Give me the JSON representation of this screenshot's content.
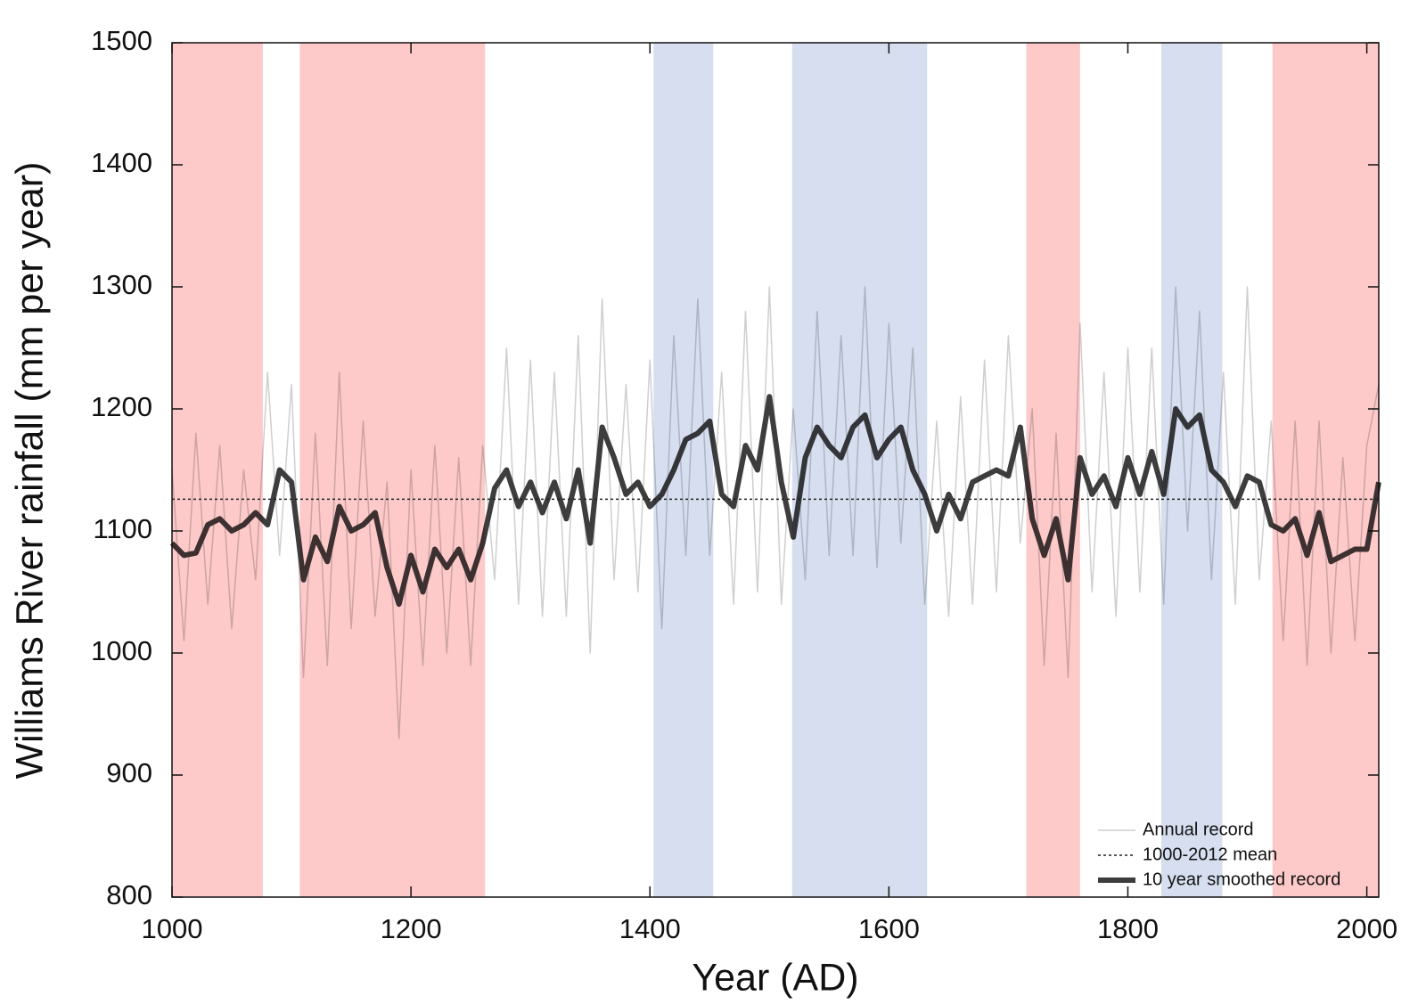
{
  "chart_data": {
    "type": "line",
    "xlabel": "Year (AD)",
    "ylabel": "Williams River rainfall (mm per year)",
    "xlim": [
      1000,
      2010
    ],
    "ylim": [
      800,
      1500
    ],
    "xticks": [
      1000,
      1200,
      1400,
      1600,
      1800,
      2000
    ],
    "yticks": [
      800,
      900,
      1000,
      1100,
      1200,
      1300,
      1400,
      1500
    ],
    "legend": "lower right",
    "shaded_regions": [
      {
        "start": 1000,
        "end": 1076,
        "color": "#fdc9c9"
      },
      {
        "start": 1107,
        "end": 1262,
        "color": "#fdc9c9"
      },
      {
        "start": 1403,
        "end": 1453,
        "color": "#d6deef"
      },
      {
        "start": 1519,
        "end": 1632,
        "color": "#d6deef"
      },
      {
        "start": 1715,
        "end": 1760,
        "color": "#fdc9c9"
      },
      {
        "start": 1828,
        "end": 1879,
        "color": "#d6deef"
      },
      {
        "start": 1921,
        "end": 2010,
        "color": "#fdc9c9"
      }
    ],
    "mean_line": {
      "name": "1000-2012 mean",
      "value": 1126,
      "color": "#222222"
    },
    "x": [
      1000,
      1010,
      1020,
      1030,
      1040,
      1050,
      1060,
      1070,
      1080,
      1090,
      1100,
      1110,
      1120,
      1130,
      1140,
      1150,
      1160,
      1170,
      1180,
      1190,
      1200,
      1210,
      1220,
      1230,
      1240,
      1250,
      1260,
      1270,
      1280,
      1290,
      1300,
      1310,
      1320,
      1330,
      1340,
      1350,
      1360,
      1370,
      1380,
      1390,
      1400,
      1410,
      1420,
      1430,
      1440,
      1450,
      1460,
      1470,
      1480,
      1490,
      1500,
      1510,
      1520,
      1530,
      1540,
      1550,
      1560,
      1570,
      1580,
      1590,
      1600,
      1610,
      1620,
      1630,
      1640,
      1650,
      1660,
      1670,
      1680,
      1690,
      1700,
      1710,
      1720,
      1730,
      1740,
      1750,
      1760,
      1770,
      1780,
      1790,
      1800,
      1810,
      1820,
      1830,
      1840,
      1850,
      1860,
      1870,
      1880,
      1890,
      1900,
      1910,
      1920,
      1930,
      1940,
      1950,
      1960,
      1970,
      1980,
      1990,
      2000,
      2010
    ],
    "series": [
      {
        "name": "Annual record",
        "color": "#cfcfcf",
        "width": 1.5,
        "values": [
          1150,
          1010,
          1180,
          1040,
          1170,
          1020,
          1150,
          1060,
          1230,
          1080,
          1220,
          980,
          1180,
          990,
          1230,
          1020,
          1190,
          1030,
          1140,
          930,
          1150,
          990,
          1170,
          1000,
          1160,
          990,
          1170,
          1060,
          1250,
          1040,
          1240,
          1030,
          1230,
          1030,
          1260,
          1000,
          1290,
          1060,
          1220,
          1050,
          1240,
          1020,
          1260,
          1080,
          1290,
          1080,
          1230,
          1040,
          1280,
          1050,
          1300,
          1040,
          1200,
          1060,
          1280,
          1080,
          1260,
          1080,
          1300,
          1070,
          1270,
          1090,
          1250,
          1040,
          1190,
          1030,
          1210,
          1040,
          1240,
          1050,
          1260,
          1090,
          1200,
          990,
          1180,
          980,
          1270,
          1050,
          1230,
          1030,
          1250,
          1050,
          1250,
          1040,
          1300,
          1100,
          1280,
          1060,
          1230,
          1040,
          1300,
          1060,
          1190,
          1010,
          1190,
          990,
          1190,
          1000,
          1160,
          1010,
          1170,
          1220
        ]
      },
      {
        "name": "10 year smoothed record",
        "color": "#3d3d3d",
        "width": 6,
        "values": [
          1090,
          1080,
          1082,
          1105,
          1110,
          1100,
          1105,
          1115,
          1105,
          1150,
          1140,
          1060,
          1095,
          1075,
          1120,
          1100,
          1105,
          1115,
          1070,
          1040,
          1080,
          1050,
          1085,
          1070,
          1085,
          1060,
          1090,
          1135,
          1150,
          1120,
          1140,
          1115,
          1140,
          1110,
          1150,
          1090,
          1185,
          1160,
          1130,
          1140,
          1120,
          1130,
          1150,
          1175,
          1180,
          1190,
          1130,
          1120,
          1170,
          1150,
          1210,
          1140,
          1095,
          1160,
          1185,
          1170,
          1160,
          1185,
          1195,
          1160,
          1175,
          1185,
          1150,
          1130,
          1100,
          1130,
          1110,
          1140,
          1145,
          1150,
          1145,
          1185,
          1110,
          1080,
          1110,
          1060,
          1160,
          1130,
          1145,
          1120,
          1160,
          1130,
          1165,
          1130,
          1200,
          1185,
          1195,
          1150,
          1140,
          1120,
          1145,
          1140,
          1105,
          1100,
          1110,
          1080,
          1115,
          1075,
          1080,
          1085,
          1085,
          1140
        ]
      }
    ]
  }
}
